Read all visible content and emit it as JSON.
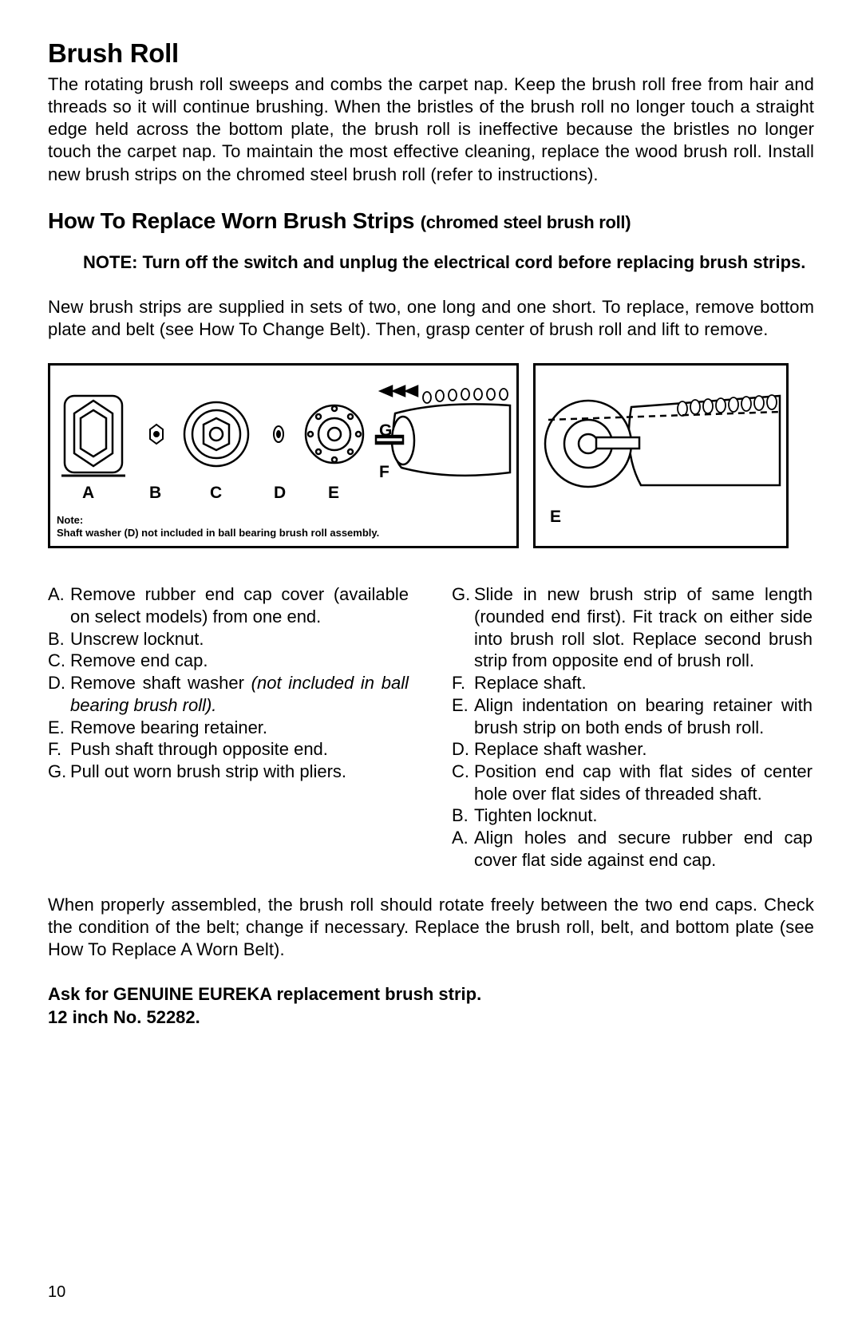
{
  "heading1": "Brush Roll",
  "para1": "The rotating brush roll sweeps and combs the carpet nap. Keep the brush roll free from hair and threads so it will continue brushing. When the bristles of the brush roll no longer touch a straight edge held across the bottom plate, the brush roll is ineffective because the bristles no longer touch the carpet nap. To maintain the most effective cleaning, replace the wood brush roll. Install new brush strips on the chromed steel brush roll (refer to instructions).",
  "heading2_main": "How To Replace Worn Brush Strips ",
  "heading2_sub": "(chromed steel brush roll)",
  "note": "NOTE: Turn off the switch and unplug the electrical cord before replacing brush strips.",
  "para2": "New brush strips are supplied in sets of two, one long and one short. To replace, remove bottom plate and belt (see How To Change Belt). Then, grasp center of brush roll and lift to remove.",
  "fig": {
    "labels": {
      "A": "A",
      "B": "B",
      "C": "C",
      "D": "D",
      "E": "E",
      "F": "F",
      "G": "G"
    },
    "note_title": "Note:",
    "note_text": "Shaft washer (D) not included in ball bearing brush roll assembly.",
    "right_label": "E"
  },
  "left_steps": [
    {
      "l": "A.",
      "t": "Remove rubber end cap cover (available on select models) from one end."
    },
    {
      "l": "B.",
      "t": "Unscrew locknut."
    },
    {
      "l": "C.",
      "t": "Remove end cap."
    },
    {
      "l": "D.",
      "t": "Remove shaft washer ",
      "i": "(not included in ball bearing brush roll)."
    },
    {
      "l": "E.",
      "t": "Remove bearing retainer."
    },
    {
      "l": "F.",
      "t": "Push shaft through opposite end."
    },
    {
      "l": "G.",
      "t": "Pull out worn brush strip with pliers."
    }
  ],
  "right_steps": [
    {
      "l": "G.",
      "t": "Slide in new brush strip of same length (rounded end first). Fit track on either side into brush roll slot. Replace second brush strip from opposite end of brush roll."
    },
    {
      "l": "F.",
      "t": "Replace shaft."
    },
    {
      "l": "E.",
      "t": "Align indentation on bearing retainer with brush strip on both ends of brush roll."
    },
    {
      "l": "D.",
      "t": "Replace shaft washer."
    },
    {
      "l": "C.",
      "t": "Position end cap with flat sides of center hole over flat sides of threaded shaft."
    },
    {
      "l": "B.",
      "t": "Tighten locknut."
    },
    {
      "l": "A.",
      "t": "Align holes and secure rubber end cap cover flat side against end cap."
    }
  ],
  "para3": "When properly assembled, the brush roll should rotate freely between the two end caps. Check the condition of the belt; change if necessary. Replace the brush roll, belt, and bottom plate (see How To Replace A Worn Belt).",
  "bold_line1": "Ask for GENUINE EUREKA replacement brush strip.",
  "bold_line2": "12 inch No. 52282.",
  "page_number": "10"
}
